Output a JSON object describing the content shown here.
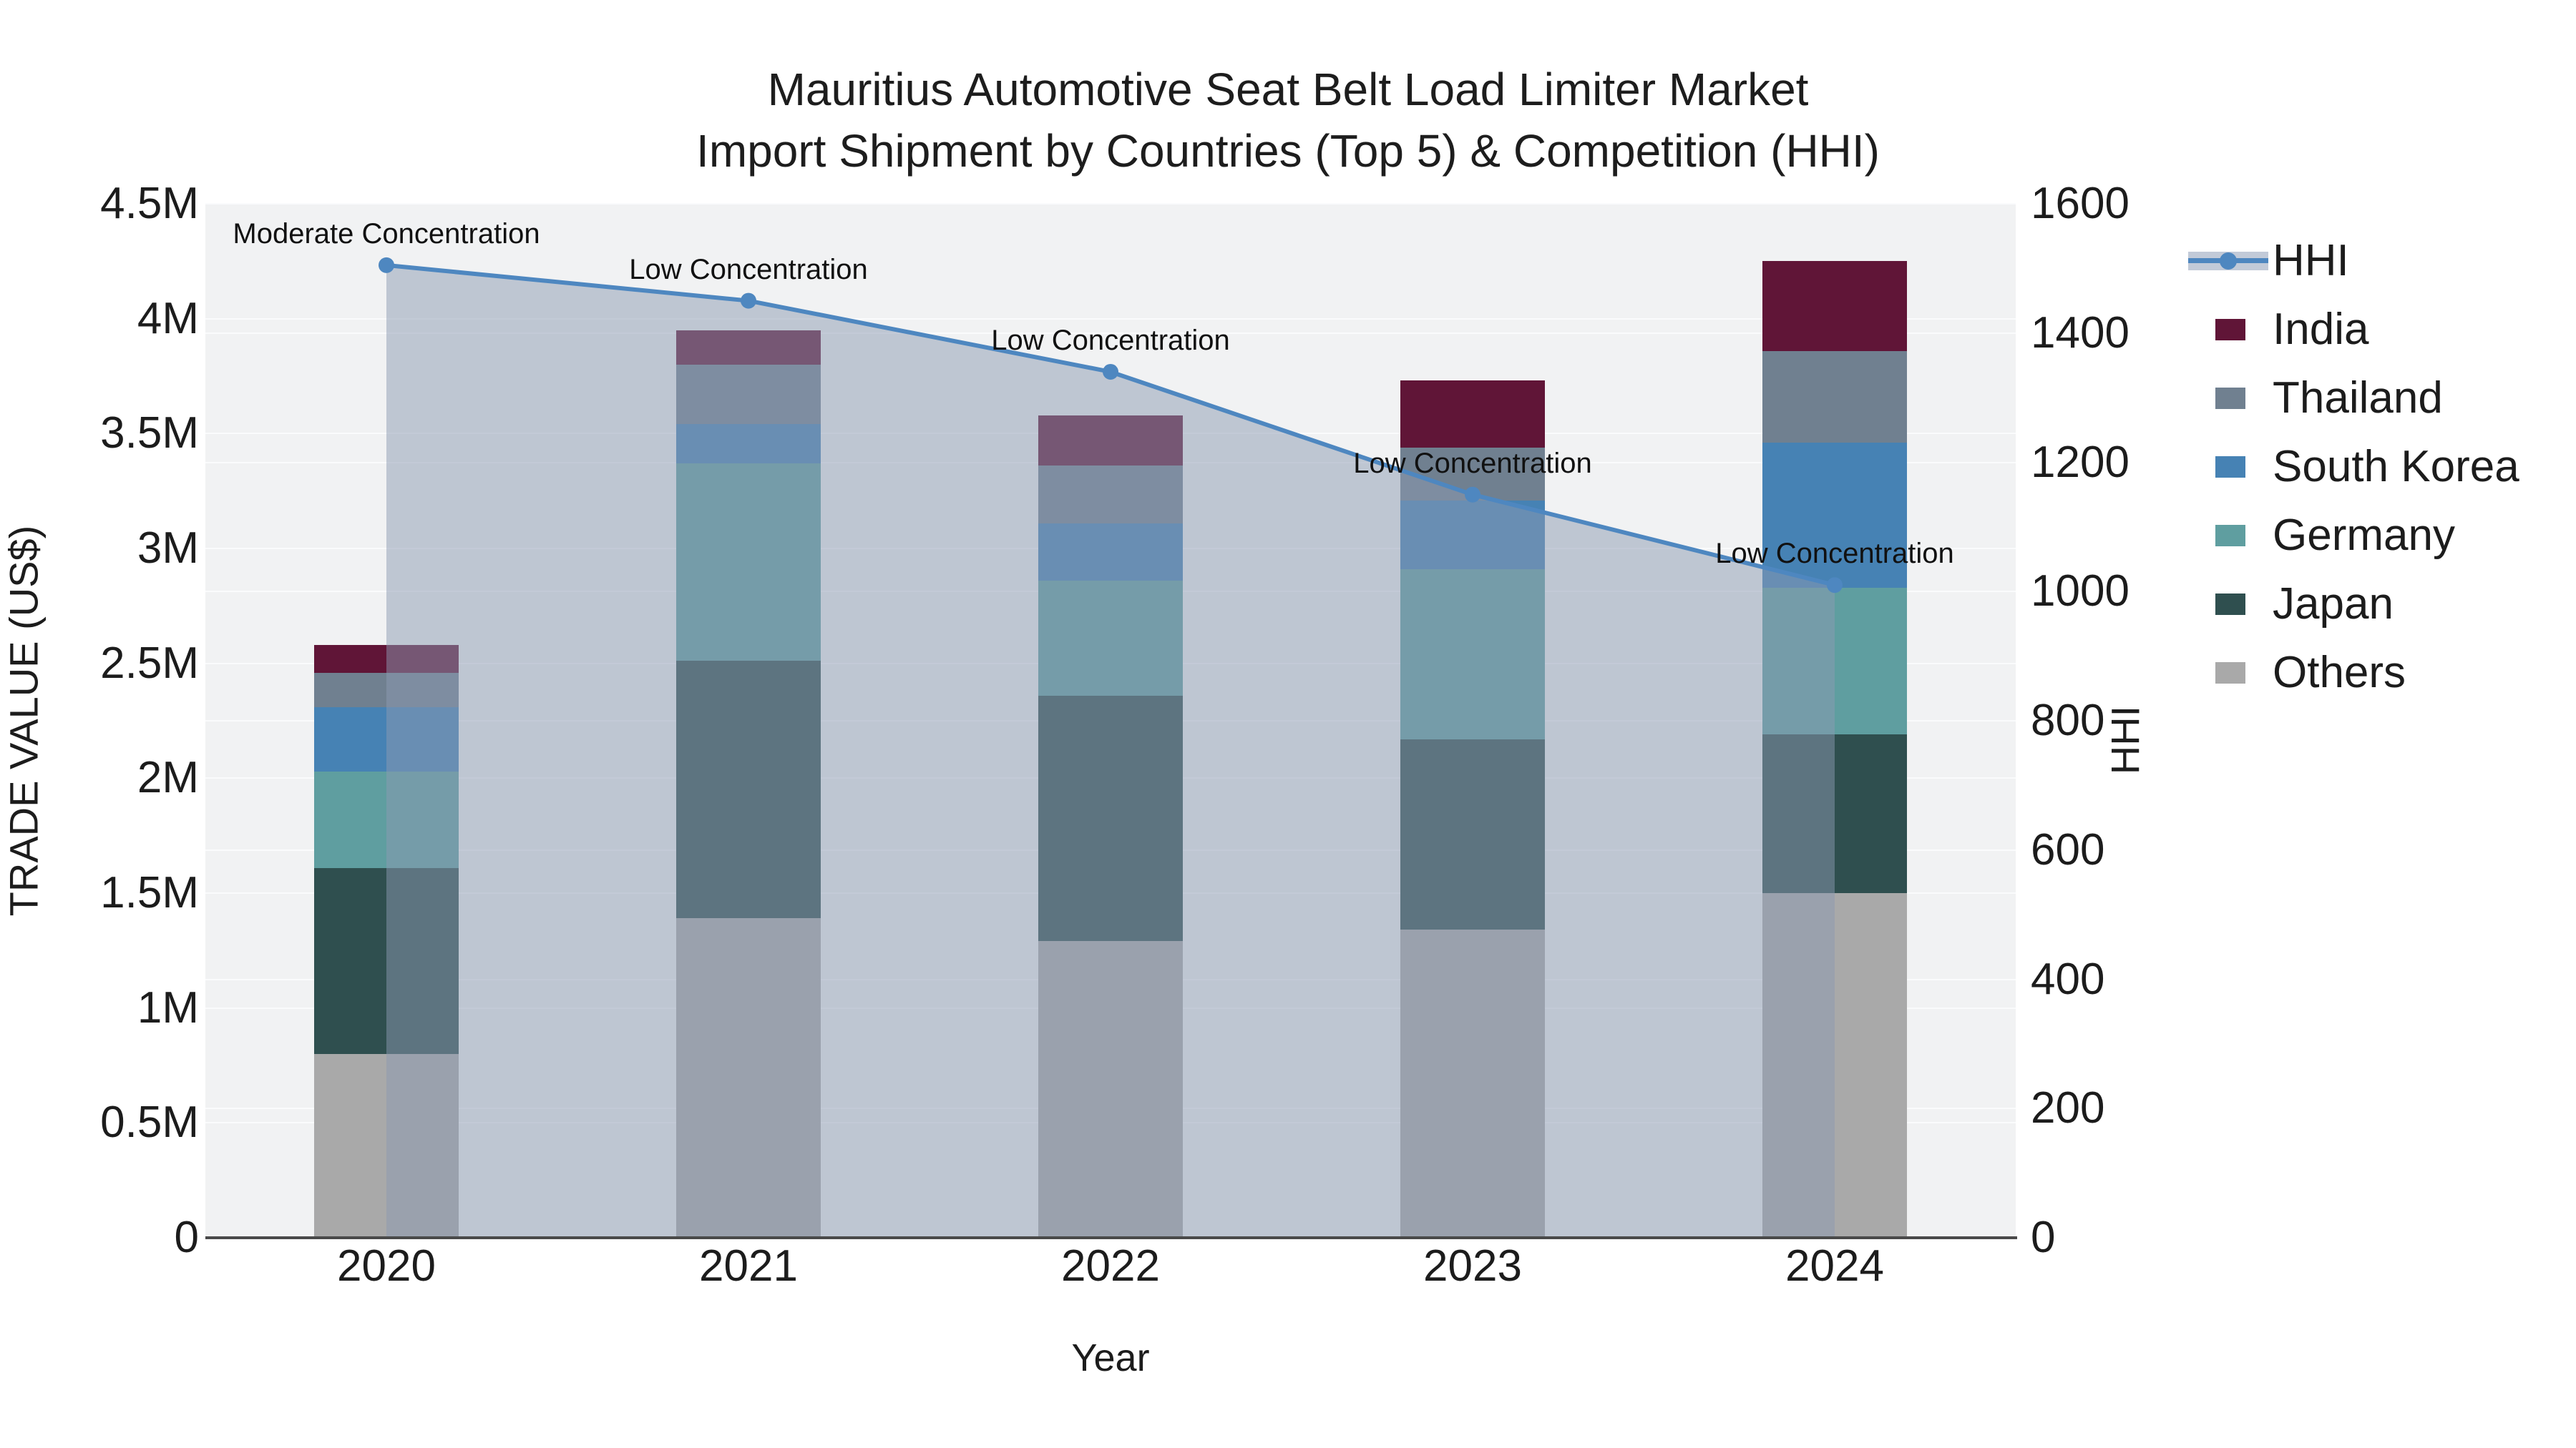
{
  "title": {
    "line1": "Mauritius Automotive Seat Belt Load Limiter Market",
    "line2": "Import Shipment by Countries (Top 5) & Competition (HHI)"
  },
  "chart_data": {
    "type": "bar",
    "subtype": "stacked-bars-with-line-overlay",
    "x_axis": {
      "title": "Year",
      "categories": [
        "2020",
        "2021",
        "2022",
        "2023",
        "2024"
      ]
    },
    "left_axis": {
      "title": "TRADE VALUE (US$)",
      "unit": "million US$",
      "max": 4.5,
      "tick_values": [
        0,
        0.5,
        1,
        1.5,
        2,
        2.5,
        3,
        3.5,
        4,
        4.5
      ],
      "tick_labels": [
        "0",
        "0.5M",
        "1M",
        "1.5M",
        "2M",
        "2.5M",
        "3M",
        "3.5M",
        "4M",
        "4.5M"
      ]
    },
    "right_axis": {
      "title": "HHI",
      "max": 1600,
      "tick_values": [
        0,
        200,
        400,
        600,
        800,
        1000,
        1200,
        1400,
        1600
      ],
      "tick_labels": [
        "0",
        "200",
        "400",
        "600",
        "800",
        "1000",
        "1200",
        "1400",
        "1600"
      ]
    },
    "bar_series": [
      {
        "name": "India",
        "color": "#601537",
        "values": [
          0.12,
          0.15,
          0.22,
          0.29,
          0.39
        ]
      },
      {
        "name": "Thailand",
        "color": "#708090",
        "values": [
          0.15,
          0.26,
          0.25,
          0.23,
          0.4
        ]
      },
      {
        "name": "South Korea",
        "color": "#4682b4",
        "values": [
          0.28,
          0.17,
          0.25,
          0.3,
          0.63
        ]
      },
      {
        "name": "Germany",
        "color": "#5f9ea0",
        "values": [
          0.42,
          0.86,
          0.5,
          0.74,
          0.64
        ]
      },
      {
        "name": "Japan",
        "color": "#2f4f4f",
        "values": [
          0.81,
          1.12,
          1.07,
          0.83,
          0.69
        ]
      },
      {
        "name": "Others",
        "color": "#a9a9a9",
        "values": [
          0.8,
          1.39,
          1.29,
          1.34,
          1.5
        ]
      }
    ],
    "bar_totals": [
      2.58,
      3.95,
      3.58,
      3.73,
      4.25
    ],
    "line_series": {
      "name": "HHI",
      "color": "#4e87c0",
      "area_fill": "rgba(140,154,178,0.5)",
      "values": [
        1505,
        1450,
        1340,
        1150,
        1010
      ]
    },
    "annotations": [
      {
        "year": "2020",
        "text": "Moderate Concentration"
      },
      {
        "year": "2021",
        "text": "Low Concentration"
      },
      {
        "year": "2022",
        "text": "Low Concentration"
      },
      {
        "year": "2023",
        "text": "Low Concentration"
      },
      {
        "year": "2024",
        "text": "Low Concentration"
      }
    ],
    "legend": {
      "hhi_label": "HHI",
      "legend_fill_swatch": "#c2cad8"
    },
    "layout_hints": {
      "grid": "on",
      "legend_position": "right",
      "plot_background": "#f1f2f3"
    }
  }
}
